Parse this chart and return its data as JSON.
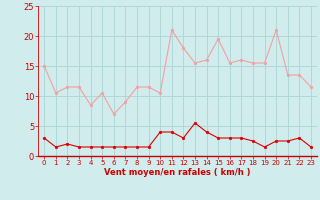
{
  "x": [
    0,
    1,
    2,
    3,
    4,
    5,
    6,
    7,
    8,
    9,
    10,
    11,
    12,
    13,
    14,
    15,
    16,
    17,
    18,
    19,
    20,
    21,
    22,
    23
  ],
  "gusts": [
    15.0,
    10.5,
    11.5,
    11.5,
    8.5,
    10.5,
    7.0,
    9.0,
    11.5,
    11.5,
    10.5,
    21.0,
    18.0,
    15.5,
    16.0,
    19.5,
    15.5,
    16.0,
    15.5,
    15.5,
    21.0,
    13.5,
    13.5,
    11.5
  ],
  "avg": [
    3.0,
    1.5,
    2.0,
    1.5,
    1.5,
    1.5,
    1.5,
    1.5,
    1.5,
    1.5,
    4.0,
    4.0,
    3.0,
    5.5,
    4.0,
    3.0,
    3.0,
    3.0,
    2.5,
    1.5,
    2.5,
    2.5,
    3.0,
    1.5
  ],
  "gust_color": "#f4a0a0",
  "avg_color": "#dd0000",
  "bg_color": "#d0ecec",
  "grid_color": "#b0d8d8",
  "xlabel": "Vent moyen/en rafales ( km/h )",
  "ylim": [
    0,
    25
  ],
  "xlim": [
    -0.5,
    23.5
  ],
  "yticks": [
    0,
    5,
    10,
    15,
    20,
    25
  ],
  "xticks": [
    0,
    1,
    2,
    3,
    4,
    5,
    6,
    7,
    8,
    9,
    10,
    11,
    12,
    13,
    14,
    15,
    16,
    17,
    18,
    19,
    20,
    21,
    22,
    23
  ],
  "tick_color": "#cc0000",
  "label_color": "#cc0000",
  "spine_color": "#cc0000",
  "line_width": 0.8,
  "marker_size": 2.0
}
